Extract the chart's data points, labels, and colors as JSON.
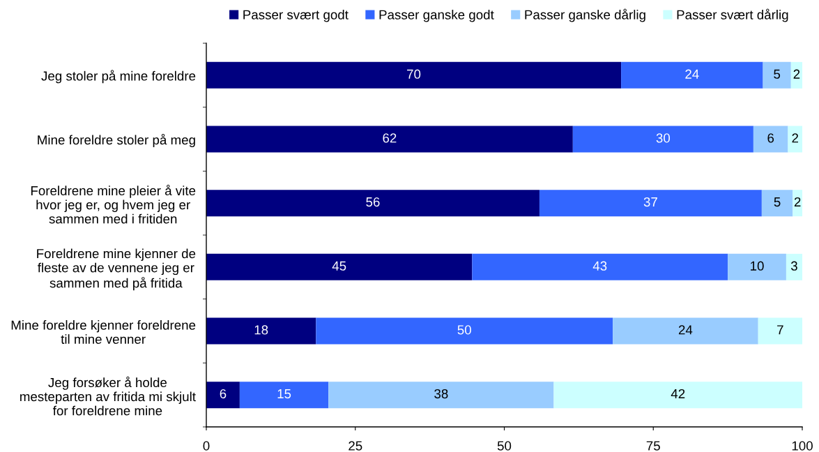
{
  "chart_data": {
    "type": "bar",
    "orientation": "horizontal",
    "stacked": true,
    "categories": [
      "Jeg stoler på mine foreldre",
      "Mine foreldre stoler på meg",
      "Foreldrene mine pleier å vite\nhvor jeg er, og hvem jeg er\nsammen med i fritiden",
      "Foreldrene mine kjenner de\nfleste av de vennene jeg er\nsammen med på fritida",
      "Mine foreldre kjenner foreldrene\ntil mine venner",
      "Jeg forsøker å holde\nmesteparten av fritida mi skjult\nfor foreldrene mine"
    ],
    "series": [
      {
        "name": "Passer svært godt",
        "color": "#000080",
        "values": [
          69.6,
          61.5,
          55.9,
          44.6,
          18.4,
          5.6
        ],
        "value_labels": [
          "70",
          "62",
          "56",
          "45",
          "18",
          "6"
        ]
      },
      {
        "name": "Passer ganske godt",
        "color": "#3366ff",
        "values": [
          23.8,
          30.3,
          37.3,
          42.9,
          49.8,
          14.9
        ],
        "value_labels": [
          "24",
          "30",
          "37",
          "43",
          "50",
          "15"
        ]
      },
      {
        "name": "Passer ganske dårlig",
        "color": "#99ccff",
        "values": [
          4.7,
          5.8,
          5.2,
          9.8,
          24.4,
          37.8
        ],
        "value_labels": [
          "5",
          "6",
          "5",
          "10",
          "24",
          "38"
        ]
      },
      {
        "name": "Passer svært dårlig",
        "color": "#ccffff",
        "values": [
          1.9,
          2.4,
          1.6,
          2.7,
          7.4,
          41.7
        ],
        "value_labels": [
          "2",
          "2",
          "2",
          "3",
          "7",
          "42"
        ]
      }
    ],
    "xlim": [
      0,
      100
    ],
    "xticks": [
      0,
      25,
      50,
      75,
      100
    ],
    "legend": "top"
  }
}
